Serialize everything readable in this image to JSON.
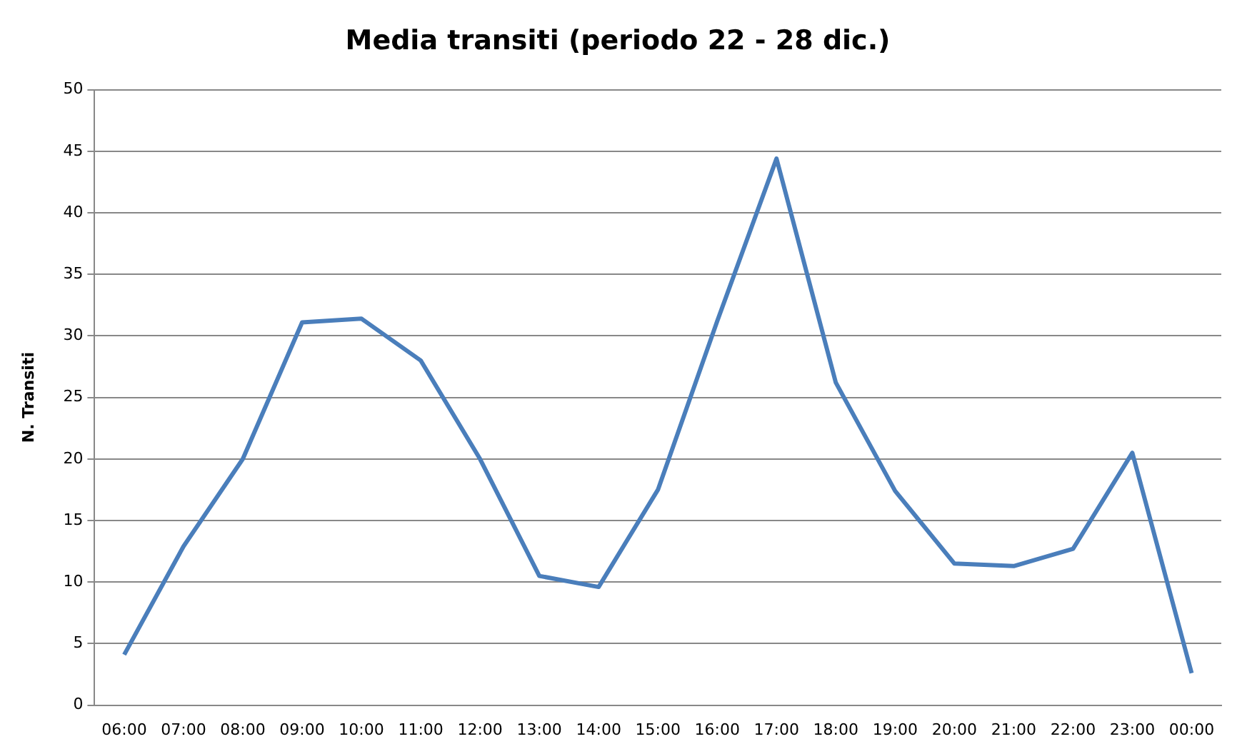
{
  "chart_data": {
    "type": "line",
    "title": "Media transiti (periodo 22 - 28 dic.)",
    "ylabel": "N. Transiti",
    "categories": [
      "06:00",
      "07:00",
      "08:00",
      "09:00",
      "10:00",
      "11:00",
      "12:00",
      "13:00",
      "14:00",
      "15:00",
      "16:00",
      "17:00",
      "18:00",
      "19:00",
      "20:00",
      "21:00",
      "22:00",
      "23:00",
      "00:00"
    ],
    "series": [
      {
        "color": "#4a7ebb",
        "values": [
          4.1,
          12.9,
          20,
          31.1,
          31.4,
          28,
          20,
          10.5,
          9.6,
          17.5,
          31.2,
          44.4,
          26.2,
          17.4,
          11.5,
          11.3,
          12.7,
          20.5,
          2.6
        ]
      }
    ],
    "ylim": [
      0,
      50
    ],
    "yticks": [
      0,
      5,
      10,
      15,
      20,
      25,
      30,
      35,
      40,
      45,
      50
    ],
    "grid": "y",
    "legend": false,
    "marker": "none",
    "line_style": "solid"
  }
}
